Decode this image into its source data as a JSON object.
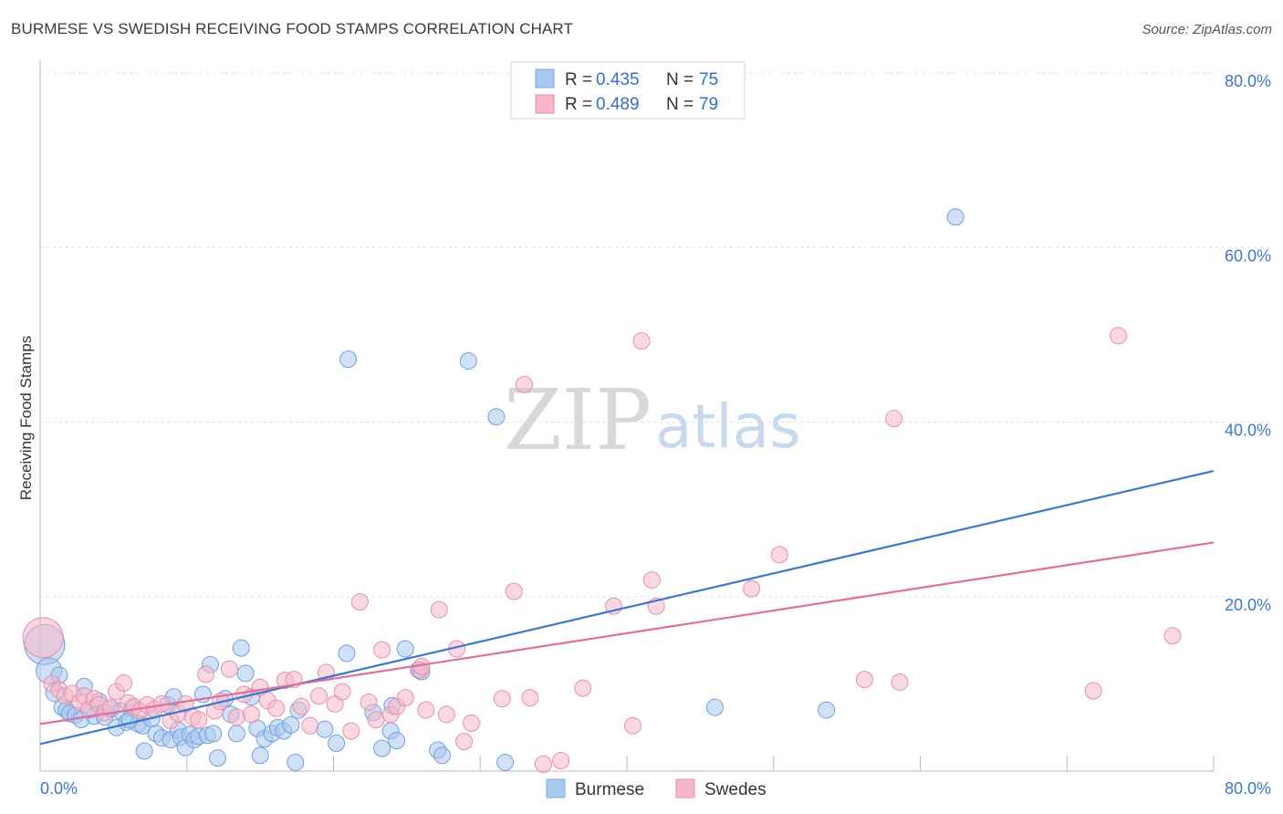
{
  "header": {
    "title": "BURMESE VS SWEDISH RECEIVING FOOD STAMPS CORRELATION CHART",
    "source": "Source: ZipAtlas.com"
  },
  "watermark": {
    "zip": "ZIP",
    "atlas": "atlas"
  },
  "legend": {
    "rows": [
      {
        "r_label": "R = ",
        "r_value": "0.435",
        "n_label": "N = ",
        "n_value": "75",
        "color": "#a9c8f0"
      },
      {
        "r_label": "R = ",
        "r_value": "0.489",
        "n_label": "N = ",
        "n_value": "79",
        "color": "#f5b8cb"
      }
    ]
  },
  "bottom_legend": {
    "items": [
      {
        "label": "Burmese",
        "color": "#a9c8f0"
      },
      {
        "label": "Swedes",
        "color": "#f5b8cb"
      }
    ]
  },
  "chart_data": {
    "type": "scatter",
    "title": "BURMESE VS SWEDISH RECEIVING FOOD STAMPS CORRELATION CHART",
    "xlabel": "",
    "ylabel": "Receiving Food Stamps",
    "xlim": [
      0,
      80
    ],
    "ylim": [
      0,
      80
    ],
    "x_tick_labels": [
      "0.0%",
      "80.0%"
    ],
    "y_tick_labels": [
      "20.0%",
      "40.0%",
      "60.0%",
      "80.0%"
    ],
    "y_ticks": [
      20,
      40,
      60,
      80
    ],
    "grid": true,
    "legend_position": "top-center",
    "colors": {
      "burmese": "#3b78c9",
      "burmese_fill": "#a9c8f0",
      "swedes": "#e0709a",
      "swedes_fill": "#f5b8cb"
    },
    "series": [
      {
        "name": "Burmese",
        "trend": {
          "x": [
            0,
            80
          ],
          "y": [
            3.1,
            34.4
          ]
        },
        "points": [
          [
            0.3,
            14.5,
            22
          ],
          [
            0.6,
            11.5,
            14
          ],
          [
            1.0,
            9.0,
            10
          ],
          [
            1.3,
            11.0,
            9
          ],
          [
            1.5,
            7.3,
            9
          ],
          [
            1.8,
            7.0,
            9
          ],
          [
            2.0,
            6.6,
            9
          ],
          [
            2.4,
            6.4,
            9
          ],
          [
            2.8,
            5.9,
            9
          ],
          [
            3.0,
            9.7,
            9
          ],
          [
            3.4,
            7.0,
            9
          ],
          [
            3.7,
            6.3,
            9
          ],
          [
            4.0,
            8.0,
            9
          ],
          [
            4.4,
            6.2,
            9
          ],
          [
            4.8,
            7.1,
            9
          ],
          [
            5.2,
            5.0,
            9
          ],
          [
            5.5,
            6.9,
            9
          ],
          [
            5.9,
            5.6,
            9
          ],
          [
            6.3,
            7.2,
            9
          ],
          [
            6.7,
            5.4,
            9
          ],
          [
            7.0,
            5.2,
            9
          ],
          [
            7.1,
            2.3,
            9
          ],
          [
            7.6,
            6.0,
            9
          ],
          [
            7.9,
            4.3,
            9
          ],
          [
            8.3,
            3.8,
            9
          ],
          [
            8.7,
            7.6,
            9
          ],
          [
            8.9,
            3.6,
            9
          ],
          [
            9.1,
            8.5,
            9
          ],
          [
            9.4,
            4.7,
            9
          ],
          [
            9.6,
            3.9,
            9
          ],
          [
            9.9,
            2.7,
            9
          ],
          [
            10.2,
            4.2,
            9
          ],
          [
            10.5,
            3.6,
            9
          ],
          [
            10.8,
            4.0,
            9
          ],
          [
            11.1,
            8.8,
            9
          ],
          [
            11.4,
            4.1,
            9
          ],
          [
            11.6,
            12.2,
            9
          ],
          [
            11.8,
            4.3,
            9
          ],
          [
            12.1,
            1.5,
            9
          ],
          [
            12.6,
            8.3,
            9
          ],
          [
            13.0,
            6.5,
            9
          ],
          [
            13.4,
            4.3,
            9
          ],
          [
            13.7,
            14.1,
            9
          ],
          [
            14.0,
            11.2,
            9
          ],
          [
            14.4,
            8.5,
            9
          ],
          [
            14.8,
            4.9,
            9
          ],
          [
            15.0,
            1.8,
            9
          ],
          [
            15.3,
            3.7,
            9
          ],
          [
            15.8,
            4.3,
            9
          ],
          [
            16.2,
            5.0,
            9
          ],
          [
            16.6,
            4.6,
            9
          ],
          [
            17.1,
            5.3,
            9
          ],
          [
            17.4,
            1.0,
            9
          ],
          [
            19.4,
            4.8,
            9
          ],
          [
            20.2,
            3.2,
            9
          ],
          [
            20.9,
            13.5,
            9
          ],
          [
            21.0,
            47.2,
            9
          ],
          [
            22.7,
            6.7,
            9
          ],
          [
            23.3,
            2.6,
            9
          ],
          [
            23.9,
            4.6,
            9
          ],
          [
            24.3,
            3.5,
            9
          ],
          [
            24.9,
            14.0,
            9
          ],
          [
            25.8,
            11.6,
            9
          ],
          [
            27.1,
            2.4,
            9
          ],
          [
            27.4,
            1.8,
            9
          ],
          [
            29.2,
            47.0,
            9
          ],
          [
            31.7,
            1.0,
            9
          ],
          [
            31.1,
            40.6,
            9
          ],
          [
            24.0,
            7.5,
            9
          ],
          [
            46.0,
            7.3,
            9
          ],
          [
            53.6,
            7.0,
            9
          ],
          [
            62.4,
            63.5,
            9
          ],
          [
            26.0,
            11.4,
            9
          ],
          [
            17.6,
            7.0,
            9
          ],
          [
            6.1,
            5.9,
            9
          ]
        ]
      },
      {
        "name": "Swedes",
        "trend": {
          "x": [
            0,
            80
          ],
          "y": [
            5.4,
            26.2
          ]
        },
        "points": [
          [
            0.2,
            15.3,
            22
          ],
          [
            0.8,
            10.0,
            9
          ],
          [
            1.3,
            9.3,
            9
          ],
          [
            1.7,
            8.6,
            9
          ],
          [
            2.2,
            8.9,
            9
          ],
          [
            2.7,
            7.9,
            9
          ],
          [
            3.0,
            8.6,
            9
          ],
          [
            3.3,
            7.1,
            9
          ],
          [
            3.7,
            8.3,
            9
          ],
          [
            4.0,
            7.6,
            9
          ],
          [
            4.4,
            6.7,
            9
          ],
          [
            4.8,
            7.3,
            9
          ],
          [
            5.2,
            9.1,
            9
          ],
          [
            5.7,
            10.1,
            9
          ],
          [
            6.0,
            7.8,
            9
          ],
          [
            6.4,
            7.4,
            9
          ],
          [
            6.8,
            6.9,
            9
          ],
          [
            7.3,
            7.6,
            9
          ],
          [
            7.8,
            7.1,
            9
          ],
          [
            8.3,
            7.7,
            9
          ],
          [
            8.9,
            5.8,
            9
          ],
          [
            9.4,
            6.6,
            9
          ],
          [
            9.9,
            7.7,
            9
          ],
          [
            10.4,
            6.2,
            9
          ],
          [
            10.8,
            5.9,
            9
          ],
          [
            11.3,
            11.1,
            9
          ],
          [
            11.9,
            6.9,
            9
          ],
          [
            12.3,
            8.0,
            9
          ],
          [
            12.9,
            11.7,
            9
          ],
          [
            13.4,
            6.2,
            9
          ],
          [
            13.9,
            8.8,
            9
          ],
          [
            14.4,
            6.5,
            9
          ],
          [
            15.0,
            9.6,
            9
          ],
          [
            15.5,
            8.1,
            9
          ],
          [
            16.1,
            7.2,
            9
          ],
          [
            16.7,
            10.4,
            9
          ],
          [
            17.3,
            10.5,
            9
          ],
          [
            17.8,
            7.4,
            9
          ],
          [
            18.4,
            5.2,
            9
          ],
          [
            19.0,
            8.6,
            9
          ],
          [
            19.5,
            11.3,
            9
          ],
          [
            20.1,
            7.7,
            9
          ],
          [
            20.6,
            9.1,
            9
          ],
          [
            21.2,
            4.6,
            9
          ],
          [
            21.8,
            19.4,
            9
          ],
          [
            22.4,
            7.9,
            9
          ],
          [
            22.9,
            5.9,
            9
          ],
          [
            23.3,
            13.9,
            9
          ],
          [
            23.9,
            6.5,
            9
          ],
          [
            24.3,
            7.4,
            9
          ],
          [
            24.9,
            8.4,
            9
          ],
          [
            25.9,
            11.6,
            9
          ],
          [
            26.3,
            7.0,
            9
          ],
          [
            27.2,
            18.5,
            9
          ],
          [
            27.7,
            6.5,
            9
          ],
          [
            28.4,
            14.0,
            9
          ],
          [
            28.9,
            3.4,
            9
          ],
          [
            29.4,
            5.5,
            9
          ],
          [
            31.5,
            8.3,
            9
          ],
          [
            32.3,
            20.6,
            9
          ],
          [
            33.0,
            44.3,
            9
          ],
          [
            33.4,
            8.4,
            9
          ],
          [
            34.3,
            0.8,
            9
          ],
          [
            35.5,
            1.2,
            9
          ],
          [
            37.0,
            9.5,
            9
          ],
          [
            39.1,
            18.9,
            9
          ],
          [
            40.4,
            5.2,
            9
          ],
          [
            41.0,
            49.3,
            9
          ],
          [
            41.7,
            21.9,
            9
          ],
          [
            42.0,
            18.9,
            9
          ],
          [
            48.5,
            20.9,
            9
          ],
          [
            50.4,
            24.8,
            9
          ],
          [
            56.2,
            10.5,
            9
          ],
          [
            58.2,
            40.4,
            9
          ],
          [
            58.6,
            10.2,
            9
          ],
          [
            71.8,
            9.2,
            9
          ],
          [
            73.5,
            49.9,
            9
          ],
          [
            77.2,
            15.5,
            9
          ],
          [
            26.0,
            12.0,
            9
          ]
        ]
      }
    ]
  }
}
